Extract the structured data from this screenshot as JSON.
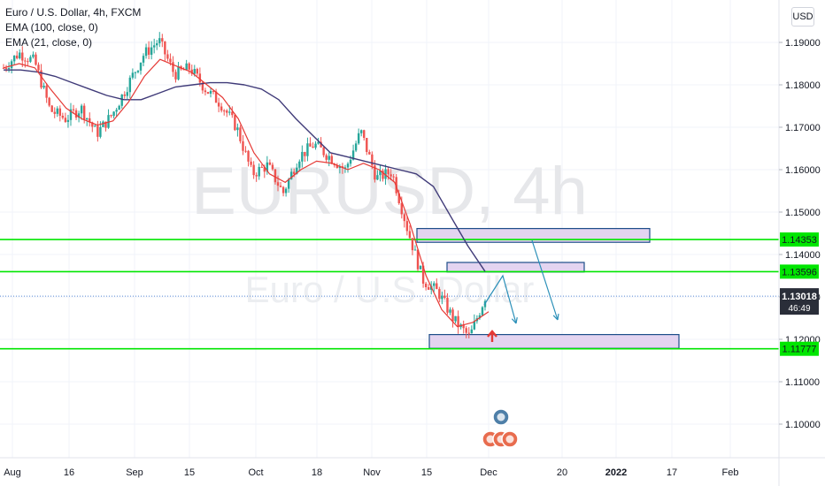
{
  "header": {
    "title": "Euro / U.S. Dollar, 4h, FXCM",
    "indicators": [
      "EMA (100, close, 0)",
      "EMA (21, close, 0)"
    ],
    "currency": "USD"
  },
  "watermark": {
    "symbol": "EURUSD, 4h",
    "description": "Euro / U.S. Dollar"
  },
  "colors": {
    "up": "#26a69a",
    "down": "#ef5350",
    "ema21": "#e53935",
    "ema100": "#3f3a78",
    "level_line": "#00e600",
    "level_label_bg": "#00e600",
    "zone_fill": "#e3d4f0",
    "zone_stroke": "#1d4e89",
    "arrow": "#2a8fb8",
    "price_label_bg": "#2a2e39"
  },
  "price_axis": {
    "ticks": [
      "1.19000",
      "1.18000",
      "1.17000",
      "1.16000",
      "1.15000",
      "1.14000",
      "1.13000",
      "1.12000",
      "1.11000",
      "1.10000"
    ]
  },
  "time_axis": {
    "ticks": [
      "Aug",
      "16",
      "Sep",
      "15",
      "Oct",
      "18",
      "Nov",
      "15",
      "Dec",
      "20",
      "2022",
      "17",
      "Feb"
    ]
  },
  "current_price": {
    "value": "1.13018",
    "countdown": "46:49"
  },
  "chart_data": {
    "type": "candlestick",
    "title": "Euro / U.S. Dollar, 4h, FXCM",
    "ylim": [
      1.0925,
      1.1985
    ],
    "x_ticks": [
      "Aug",
      "16",
      "Sep",
      "15",
      "Oct",
      "18",
      "Nov",
      "15",
      "Dec",
      "20",
      "2022",
      "17",
      "Feb"
    ],
    "close_path": [
      [
        "Aug",
        1.184
      ],
      [
        "Aug",
        1.1875
      ],
      [
        "Aug",
        1.1855
      ],
      [
        "16",
        1.174
      ],
      [
        "16",
        1.172
      ],
      [
        "16",
        1.1745
      ],
      [
        "16",
        1.1685
      ],
      [
        "16",
        1.173
      ],
      [
        "Sep",
        1.18
      ],
      [
        "Sep",
        1.187
      ],
      [
        "Sep",
        1.1905
      ],
      [
        "Sep",
        1.1825
      ],
      [
        "15",
        1.184
      ],
      [
        "15",
        1.179
      ],
      [
        "15",
        1.1755
      ],
      [
        "15",
        1.17
      ],
      [
        "Oct",
        1.159
      ],
      [
        "Oct",
        1.161
      ],
      [
        "Oct",
        1.1545
      ],
      [
        "18",
        1.163
      ],
      [
        "18",
        1.166
      ],
      [
        "18",
        1.163
      ],
      [
        "Nov",
        1.16
      ],
      [
        "Nov",
        1.169
      ],
      [
        "Nov",
        1.158
      ],
      [
        "Nov",
        1.1595
      ],
      [
        "15",
        1.146
      ],
      [
        "15",
        1.134
      ],
      [
        "15",
        1.131
      ],
      [
        "15",
        1.1245
      ],
      [
        "15",
        1.1205
      ],
      [
        "Dec",
        1.13
      ]
    ],
    "series": [
      {
        "name": "EMA (100, close, 0)",
        "values": [
          1.1835,
          1.1835,
          1.183,
          1.182,
          1.1805,
          1.179,
          1.1775,
          1.1765,
          1.1765,
          1.178,
          1.1795,
          1.18,
          1.1805,
          1.1805,
          1.18,
          1.179,
          1.1765,
          1.172,
          1.168,
          1.164,
          1.163,
          1.162,
          1.161,
          1.16,
          1.159,
          1.156,
          1.149,
          1.142,
          1.136
        ]
      },
      {
        "name": "EMA (21, close, 0)",
        "values": [
          1.184,
          1.185,
          1.184,
          1.179,
          1.1745,
          1.172,
          1.1705,
          1.1715,
          1.176,
          1.182,
          1.186,
          1.1845,
          1.183,
          1.18,
          1.177,
          1.172,
          1.164,
          1.159,
          1.157,
          1.16,
          1.162,
          1.1615,
          1.16,
          1.1615,
          1.16,
          1.157,
          1.147,
          1.135,
          1.127,
          1.123,
          1.124,
          1.1265
        ]
      }
    ],
    "horizontal_levels": [
      1.14353,
      1.13596,
      1.11777
    ],
    "zones": [
      {
        "top": 1.1455,
        "bottom": 1.1435,
        "from": "15",
        "to": "2022"
      },
      {
        "top": 1.1375,
        "bottom": 1.1365,
        "from": "15",
        "to": "20"
      },
      {
        "top": 1.1205,
        "bottom": 1.1185,
        "from": "15",
        "to": "2022"
      }
    ],
    "last_price": 1.13018
  }
}
